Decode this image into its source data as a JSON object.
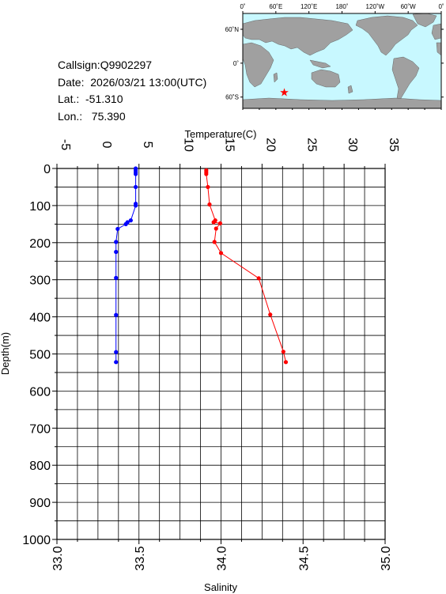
{
  "station": {
    "callsign": "Callsign:Q9902297",
    "date": "Date:  2026/03/21 13:00(UTC)",
    "lat": "Lat.:  -51.310",
    "lon": "Lon.:   75.390"
  },
  "map": {
    "lon_labels": [
      "0˚",
      "60˚E",
      "120˚E",
      "180˚",
      "120˚W",
      "60˚W",
      "0˚"
    ],
    "lat_labels": [
      "60˚N",
      "0˚",
      "60˚S"
    ],
    "ocean_color": "#c8f8ff",
    "land_color": "#a0a0a0",
    "marker_color": "#ff0000",
    "marker": {
      "lon": 75.39,
      "lat": -51.31
    }
  },
  "chart_data": {
    "type": "line",
    "y_axis": {
      "label": "Depth(m)",
      "range": [
        0,
        1000
      ],
      "inverted": true,
      "ticks": [
        0,
        100,
        200,
        300,
        400,
        500,
        600,
        700,
        800,
        900,
        1000
      ]
    },
    "top_axis": {
      "label": "Temperature(C)",
      "range": [
        -5,
        35
      ],
      "ticks": [
        -5,
        0,
        5,
        10,
        15,
        20,
        25,
        30,
        35
      ]
    },
    "bottom_axis": {
      "label": "Salinity",
      "range": [
        33.0,
        35.0
      ],
      "ticks": [
        "33.0",
        "33.5",
        "34.0",
        "34.5",
        "35.0"
      ]
    },
    "grid": true,
    "series": [
      {
        "axis": "salinity",
        "color": "#0000ff",
        "points": [
          [
            33.48,
            0
          ],
          [
            33.48,
            5
          ],
          [
            33.48,
            10
          ],
          [
            33.48,
            15
          ],
          [
            33.48,
            50
          ],
          [
            33.48,
            95
          ],
          [
            33.48,
            100
          ],
          [
            33.45,
            140
          ],
          [
            33.43,
            145
          ],
          [
            33.42,
            150
          ],
          [
            33.37,
            163
          ],
          [
            33.36,
            198
          ],
          [
            33.36,
            225
          ],
          [
            33.36,
            295
          ],
          [
            33.36,
            395
          ],
          [
            33.36,
            495
          ],
          [
            33.36,
            522
          ]
        ]
      },
      {
        "axis": "temperature",
        "color": "#ff0000",
        "points": [
          [
            13.2,
            5
          ],
          [
            13.2,
            10
          ],
          [
            13.2,
            15
          ],
          [
            13.4,
            50
          ],
          [
            13.6,
            97
          ],
          [
            14.3,
            140
          ],
          [
            14.1,
            145
          ],
          [
            14.9,
            148
          ],
          [
            14.4,
            162
          ],
          [
            14.2,
            198
          ],
          [
            15.0,
            228
          ],
          [
            19.6,
            296
          ],
          [
            21.0,
            394
          ],
          [
            22.6,
            494
          ],
          [
            22.9,
            522
          ]
        ]
      }
    ]
  }
}
